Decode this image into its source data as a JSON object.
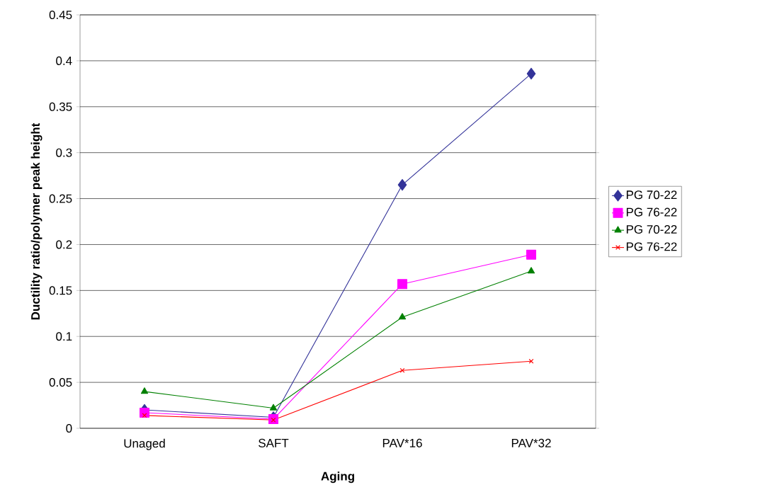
{
  "chart_data": {
    "type": "line",
    "xlabel": "Aging",
    "ylabel": "Ductility ratio/polymer peak height",
    "categories": [
      "Unaged",
      "SAFT",
      "PAV*16",
      "PAV*32"
    ],
    "series": [
      {
        "name": "PG 70-22",
        "color": "#333399",
        "marker": "diamond",
        "values": [
          0.02,
          0.012,
          0.265,
          0.386
        ]
      },
      {
        "name": "PG 76-22",
        "color": "#ff00ff",
        "marker": "square",
        "values": [
          0.017,
          0.01,
          0.157,
          0.189
        ]
      },
      {
        "name": "PG 70-22",
        "color": "#008000",
        "marker": "triangle",
        "values": [
          0.04,
          0.022,
          0.121,
          0.171
        ]
      },
      {
        "name": "PG 76-22",
        "color": "#ff0000",
        "marker": "cross",
        "values": [
          0.014,
          0.009,
          0.063,
          0.073
        ]
      }
    ],
    "ylim": [
      0,
      0.45
    ],
    "yticks": [
      0,
      0.05,
      0.1,
      0.15,
      0.2,
      0.25,
      0.3,
      0.35,
      0.4,
      0.45
    ],
    "grid": "y",
    "legend": "right"
  }
}
